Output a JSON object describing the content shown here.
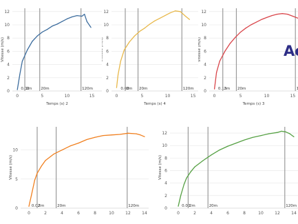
{
  "heading_fragment": "Ac",
  "chart_data": [
    {
      "type": "line",
      "color": "#3d6d9e",
      "xlabel": "Temps (s) 2",
      "ylabel": "Vitesse (m/s)",
      "xlim": [
        -1,
        17
      ],
      "ylim": [
        0,
        12.5
      ],
      "xticks": [
        0,
        5,
        10,
        15
      ],
      "yticks": [
        0,
        2,
        4,
        6,
        8,
        10,
        12
      ],
      "markers": [
        {
          "x": 0.5,
          "label": "0.02"
        },
        {
          "x": 1.5,
          "label": "2m"
        },
        {
          "x": 4.5,
          "label": "20m"
        },
        {
          "x": 12.8,
          "label": "120m"
        }
      ],
      "series": [
        {
          "x": [
            0,
            0.5,
            1,
            2,
            3,
            4,
            5,
            6,
            7,
            8,
            9,
            10,
            11,
            12,
            13,
            13.5,
            14,
            14.8
          ],
          "y": [
            0.2,
            2.5,
            4.5,
            6.2,
            7.5,
            8.3,
            8.9,
            9.3,
            9.8,
            10.1,
            10.5,
            10.9,
            11.2,
            11.4,
            11.3,
            11.6,
            10.5,
            9.6
          ]
        }
      ]
    },
    {
      "type": "line",
      "color": "#e8b84a",
      "xlabel": "Temps (s) 4",
      "ylabel": "Vitesse (m/s)",
      "xlim": [
        -1,
        16
      ],
      "ylim": [
        0,
        12.5
      ],
      "xticks": [
        0,
        5,
        10,
        15
      ],
      "yticks": [
        0,
        2,
        4,
        6,
        8,
        10,
        12
      ],
      "markers": [
        {
          "x": 0.6,
          "label": "0.00"
        },
        {
          "x": 1.7,
          "label": "2m"
        },
        {
          "x": 4.2,
          "label": "20m"
        },
        {
          "x": 12.8,
          "label": "120m"
        }
      ],
      "series": [
        {
          "x": [
            0,
            0.3,
            0.8,
            1.5,
            2.5,
            3.5,
            4.5,
            5.5,
            6.5,
            7.5,
            8.5,
            9.5,
            10.5,
            11.5,
            12.5,
            13.5,
            14.3
          ],
          "y": [
            0.5,
            2.5,
            4.5,
            6.2,
            7.4,
            8.3,
            9.0,
            9.5,
            10.1,
            10.6,
            11.0,
            11.4,
            11.8,
            12.1,
            12.0,
            11.3,
            10.8
          ]
        }
      ]
    },
    {
      "type": "line",
      "color": "#d9454a",
      "xlabel": "Temps (s) 3",
      "ylabel": "Vitesse (m/s)",
      "xlim": [
        -1,
        16
      ],
      "ylim": [
        0,
        12.5
      ],
      "xticks": [
        0,
        5,
        10,
        15
      ],
      "yticks": [
        0,
        2,
        4,
        6,
        8,
        10,
        12
      ],
      "markers": [
        {
          "x": 0.5,
          "label": "0.13"
        },
        {
          "x": 1.6,
          "label": "2m"
        },
        {
          "x": 4.2,
          "label": "20m"
        },
        {
          "x": 15.5,
          "label": "140m"
        }
      ],
      "series": [
        {
          "x": [
            0,
            0.4,
            1,
            2,
            3,
            4,
            5,
            6,
            7,
            8,
            9,
            10,
            11,
            12,
            13,
            14,
            15,
            16
          ],
          "y": [
            0.3,
            2.8,
            4.5,
            6.0,
            7.2,
            8.1,
            8.9,
            9.5,
            10.0,
            10.4,
            10.8,
            11.1,
            11.4,
            11.6,
            11.7,
            11.6,
            11.3,
            11.0
          ]
        }
      ]
    },
    {
      "type": "line",
      "color": "#f07f1e",
      "xlabel": "",
      "ylabel": "Vitesse (m/s)",
      "xlim": [
        -1,
        14.5
      ],
      "ylim": [
        0,
        14
      ],
      "xticks": [
        0,
        2,
        4,
        6,
        8,
        10,
        12,
        14
      ],
      "yticks": [
        0,
        5,
        10
      ],
      "markers": [
        {
          "x": 0.2,
          "label": "0.02"
        },
        {
          "x": 1.0,
          "label": "2m"
        },
        {
          "x": 3.3,
          "label": "20m"
        },
        {
          "x": 11.9,
          "label": "120m"
        }
      ],
      "series": [
        {
          "x": [
            0,
            0.3,
            0.7,
            1,
            1.5,
            2,
            3,
            4,
            5,
            6,
            7,
            8,
            9,
            10,
            11,
            12,
            13,
            13.5,
            14
          ],
          "y": [
            0.3,
            2.2,
            4.8,
            6.0,
            7.2,
            8.2,
            9.3,
            10.0,
            10.7,
            11.2,
            11.8,
            12.2,
            12.5,
            12.6,
            12.7,
            12.9,
            12.8,
            12.6,
            12.3
          ]
        }
      ]
    },
    {
      "type": "line",
      "color": "#55a043",
      "xlabel": "",
      "ylabel": "Vitesse (m/s)",
      "xlim": [
        -1,
        14.5
      ],
      "ylim": [
        0,
        13
      ],
      "xticks": [
        0,
        2,
        4,
        6,
        8,
        10,
        12,
        14
      ],
      "yticks": [
        0,
        2,
        4,
        6,
        8,
        10,
        12
      ],
      "markers": [
        {
          "x": 0.3,
          "label": "0.00"
        },
        {
          "x": 1.2,
          "label": "2m"
        },
        {
          "x": 3.6,
          "label": "20m"
        },
        {
          "x": 12.9,
          "label": "120m"
        }
      ],
      "series": [
        {
          "x": [
            0,
            0.3,
            0.7,
            1,
            1.5,
            2,
            3,
            4,
            5,
            6,
            7,
            8,
            9,
            10,
            11,
            12,
            12.5,
            13,
            13.5,
            14
          ],
          "y": [
            0.3,
            2.0,
            3.8,
            4.8,
            5.8,
            6.6,
            7.6,
            8.5,
            9.3,
            9.9,
            10.4,
            10.9,
            11.3,
            11.6,
            11.9,
            12.1,
            12.3,
            12.2,
            11.9,
            11.4
          ]
        }
      ]
    }
  ]
}
